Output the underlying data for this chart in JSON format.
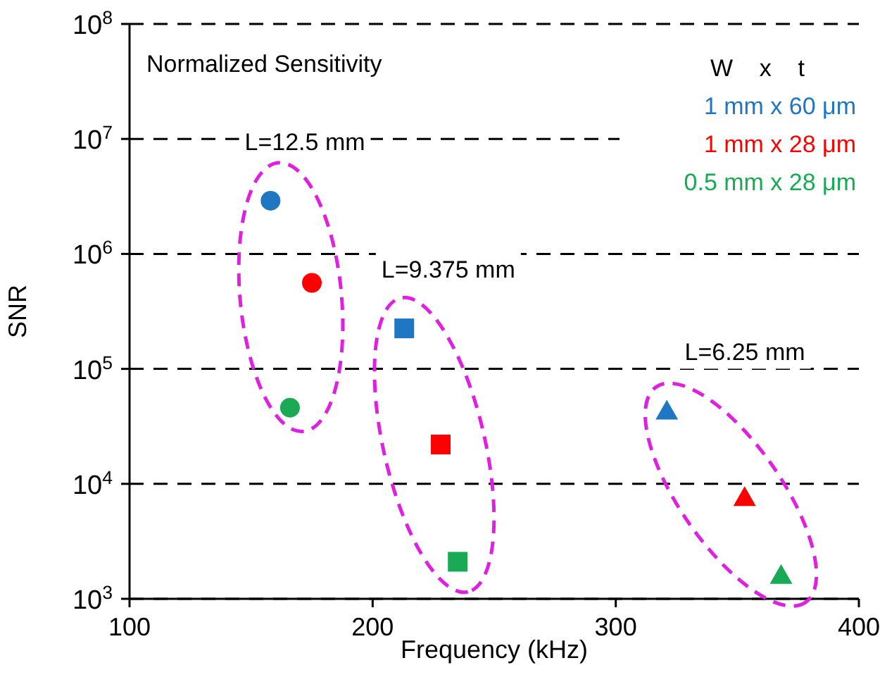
{
  "chart_data": {
    "type": "scatter",
    "title": "Normalized Sensitivity",
    "xlabel": "Frequency (kHz)",
    "ylabel": "SNR",
    "legend_title": "W    x    t",
    "legend": "top right",
    "log": "y",
    "grid": "y",
    "xlim": [
      100,
      400
    ],
    "xticks": [
      100,
      200,
      300,
      400
    ],
    "ylim": [
      1000,
      100000000
    ],
    "yticks": [
      {
        "value": 1000,
        "label": "10$^{3}$"
      },
      {
        "value": 10000,
        "label": "10$^{4}$"
      },
      {
        "value": 100000,
        "label": "10$^{5}$"
      },
      {
        "value": 1000000,
        "label": "10$^{6}$"
      },
      {
        "value": 10000000,
        "label": "10$^{7}$"
      },
      {
        "value": 100000000,
        "label": "10$^{8}$"
      }
    ],
    "series": [
      {
        "name": "1 mm x 60 μm",
        "color": "#1f77c4",
        "x": [
          158,
          213,
          321
        ],
        "values": [
          2900000,
          225000,
          43000
        ],
        "marker": [
          "circle",
          "square",
          "triangle"
        ]
      },
      {
        "name": "1 mm x 28 μm",
        "color": "#ff0000",
        "x": [
          175,
          228,
          353
        ],
        "values": [
          560000,
          22000,
          7600
        ],
        "marker": [
          "circle",
          "square",
          "triangle"
        ]
      },
      {
        "name": "0.5 mm x 28 μm",
        "color": "#1aaa55",
        "x": [
          166,
          235,
          368
        ],
        "values": [
          46000,
          2100,
          1600
        ],
        "marker": [
          "circle",
          "square",
          "triangle"
        ]
      }
    ],
    "annotations": [
      "L=12.5 mm",
      "L=9.375 mm",
      "L=6.25 mm"
    ]
  }
}
